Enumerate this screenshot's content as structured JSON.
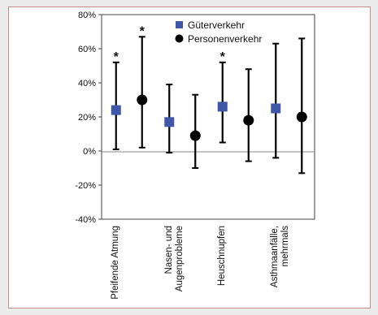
{
  "chart_data": {
    "type": "scatter",
    "title": "",
    "xlabel": "",
    "ylabel": "",
    "ylim": [
      -40,
      80
    ],
    "y_ticks": [
      "80%",
      "60%",
      "40%",
      "20%",
      "0%",
      "-20%",
      "-40%"
    ],
    "y_tick_values": [
      80,
      60,
      40,
      20,
      0,
      -20,
      -40
    ],
    "categories": [
      {
        "lines": [
          "Pfeifende Atmung"
        ]
      },
      {
        "lines": [
          "Nasen- und",
          "Augenprobleme"
        ]
      },
      {
        "lines": [
          "Heuschnupfen"
        ]
      },
      {
        "lines": [
          "Asthmaanfälle,",
          "mehrmals"
        ]
      }
    ],
    "grid": false,
    "legend_position": "top-right",
    "series": [
      {
        "name": "Güterverkehr",
        "color": "#3f57a6",
        "marker": "square",
        "points": [
          {
            "category": 0,
            "y": 24,
            "low": 1,
            "high": 52,
            "significant": true
          },
          {
            "category": 1,
            "y": 17,
            "low": -1,
            "high": 39,
            "significant": false
          },
          {
            "category": 2,
            "y": 26,
            "low": 5,
            "high": 52,
            "significant": true
          },
          {
            "category": 3,
            "y": 25,
            "low": -4,
            "high": 63,
            "significant": false
          }
        ]
      },
      {
        "name": "Personenverkehr",
        "color": "#000000",
        "marker": "circle",
        "points": [
          {
            "category": 0,
            "y": 30,
            "low": 2,
            "high": 67,
            "significant": true
          },
          {
            "category": 1,
            "y": 9,
            "low": -10,
            "high": 33,
            "significant": false
          },
          {
            "category": 2,
            "y": 18,
            "low": -6,
            "high": 48,
            "significant": false
          },
          {
            "category": 3,
            "y": 20,
            "low": -13,
            "high": 66,
            "significant": false
          }
        ]
      }
    ],
    "significance_marker": "*"
  }
}
